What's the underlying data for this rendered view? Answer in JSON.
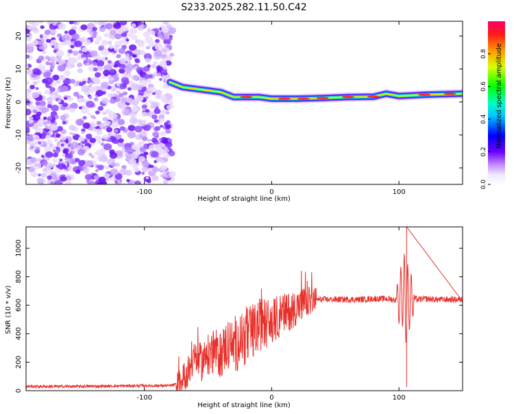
{
  "figure": {
    "title": "S233.2025.282.11.50.C42"
  },
  "colors": {
    "snr_line": "#e8302a",
    "axis": "#000000",
    "background": "#ffffff"
  },
  "chart_data": [
    {
      "type": "heatmap",
      "name": "spectrogram",
      "title": "",
      "xlabel": "Height of straight line (km)",
      "ylabel": "Frequency (Hz)",
      "xlim": [
        -193,
        150
      ],
      "ylim": [
        -25,
        24.5
      ],
      "x_ticks": [
        -100,
        0,
        100
      ],
      "y_ticks": [
        20,
        10,
        0,
        -10,
        -20
      ],
      "noise_region_x": [
        -193,
        -78
      ],
      "signal_track": [
        {
          "x": -80,
          "y": 6
        },
        {
          "x": -70,
          "y": 4.5
        },
        {
          "x": -60,
          "y": 4
        },
        {
          "x": -50,
          "y": 3.5
        },
        {
          "x": -40,
          "y": 3
        },
        {
          "x": -30,
          "y": 1.5
        },
        {
          "x": -20,
          "y": 1.5
        },
        {
          "x": -10,
          "y": 1.5
        },
        {
          "x": 0,
          "y": 1
        },
        {
          "x": 10,
          "y": 1
        },
        {
          "x": 20,
          "y": 1
        },
        {
          "x": 40,
          "y": 1.2
        },
        {
          "x": 60,
          "y": 1.5
        },
        {
          "x": 80,
          "y": 1.6
        },
        {
          "x": 90,
          "y": 2.5
        },
        {
          "x": 100,
          "y": 1.8
        },
        {
          "x": 120,
          "y": 2.2
        },
        {
          "x": 150,
          "y": 2.5
        }
      ],
      "colorbar": {
        "label": "Normalized spectral amplitude",
        "ticks": [
          0.0,
          0.2,
          0.4,
          0.6,
          0.8
        ],
        "range": [
          0,
          1
        ],
        "tick_labels": [
          "0.0",
          "0.2",
          "0.4",
          "0.6",
          "0.8"
        ]
      }
    },
    {
      "type": "line",
      "name": "snr",
      "title": "",
      "xlabel": "Height of straight line (km)",
      "ylabel": "SNR (10 * v/v)",
      "xlim": [
        -193,
        150
      ],
      "ylim": [
        0,
        1150
      ],
      "x_ticks": [
        -100,
        0,
        100
      ],
      "y_ticks": [
        0,
        200,
        400,
        600,
        800,
        1000
      ],
      "series": [
        {
          "name": "SNR",
          "x": [
            -193,
            -150,
            -100,
            -80,
            -72,
            -65,
            -60,
            -55,
            -50,
            -45,
            -40,
            -35,
            -30,
            -25,
            -20,
            -15,
            -10,
            -5,
            0,
            5,
            10,
            15,
            20,
            25,
            30,
            35,
            40,
            50,
            60,
            70,
            80,
            90,
            95,
            100,
            103,
            106,
            108,
            110,
            115,
            120,
            130,
            140,
            150
          ],
          "values": [
            30,
            30,
            35,
            35,
            50,
            150,
            230,
            200,
            250,
            280,
            250,
            330,
            300,
            350,
            380,
            400,
            460,
            480,
            470,
            520,
            540,
            560,
            590,
            610,
            630,
            640,
            640,
            640,
            640,
            640,
            645,
            645,
            640,
            630,
            700,
            620,
            640,
            650,
            640,
            645,
            640,
            640,
            640
          ]
        }
      ],
      "annotations": [
        {
          "x": 106,
          "label": "",
          "peak": 1150,
          "trough": 25
        }
      ]
    }
  ]
}
